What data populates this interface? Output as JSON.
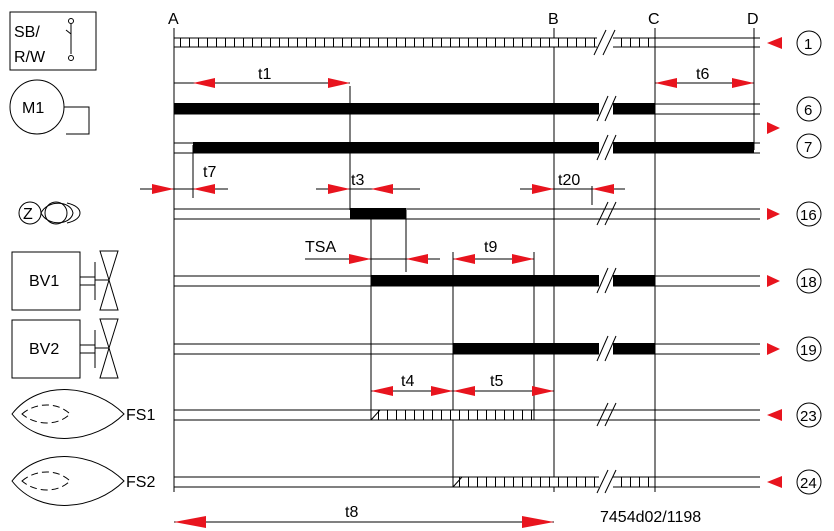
{
  "colors": {
    "arrow": "#e8141e",
    "line": "#000000",
    "background": "#ffffff"
  },
  "columns": {
    "a": "A",
    "b": "B",
    "c": "C",
    "d": "D"
  },
  "devices": {
    "switch_line1": "SB/",
    "switch_line2": "R/W",
    "motor": "M1",
    "ignition": "Z",
    "valve1": "BV1",
    "valve2": "BV2",
    "flame1": "FS1",
    "flame2": "FS2"
  },
  "terminals": {
    "t1": "1",
    "t6": "6",
    "t7": "7",
    "t16": "16",
    "t18": "18",
    "t19": "19",
    "t23": "23",
    "t24": "24"
  },
  "times": {
    "t1": "t1",
    "t3": "t3",
    "t4": "t4",
    "t5": "t5",
    "t6": "t6",
    "t7": "t7",
    "t8": "t8",
    "t9": "t9",
    "t20": "t20",
    "tsa": "TSA"
  },
  "doc_code": "7454d02/1198"
}
